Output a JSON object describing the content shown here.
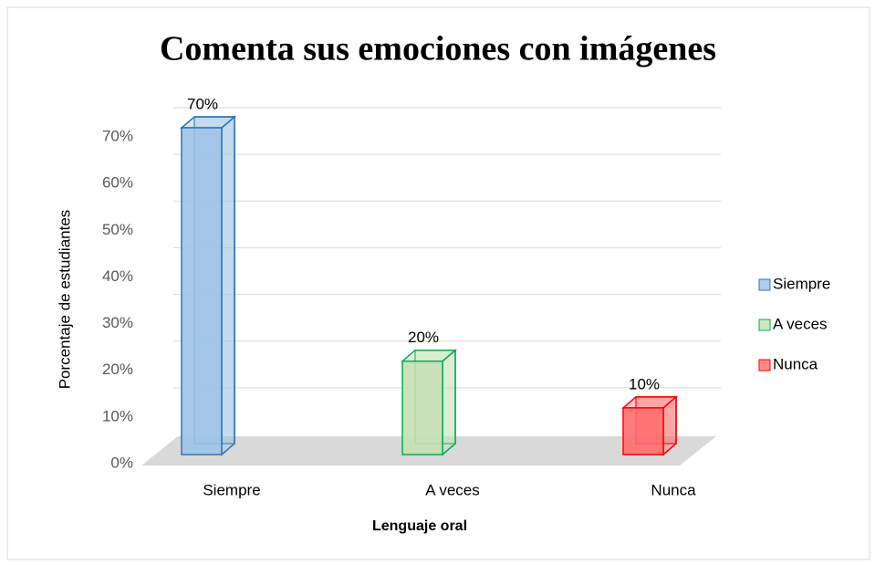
{
  "chart_data": {
    "type": "bar3d",
    "title": "Comenta sus emociones con imágenes",
    "x_label": "Lenguaje oral",
    "y_label": "Porcentaje de estudiantes",
    "categories": [
      "Siempre",
      "A veces",
      "Nunca"
    ],
    "values": [
      70,
      20,
      10
    ],
    "value_labels": [
      "70%",
      "20%",
      "10%"
    ],
    "colors": [
      "#9dc3e6",
      "#c5e0b4",
      "#ff6b6b"
    ],
    "edge_colors": [
      "#2e75b6",
      "#00b050",
      "#ff0000"
    ],
    "ylim": [
      0,
      70
    ],
    "yticks": [
      {
        "value": 0,
        "label": "0%"
      },
      {
        "value": 10,
        "label": "10%"
      },
      {
        "value": 20,
        "label": "20%"
      },
      {
        "value": 30,
        "label": "30%"
      },
      {
        "value": 40,
        "label": "40%"
      },
      {
        "value": 50,
        "label": "50%"
      },
      {
        "value": 60,
        "label": "60%"
      },
      {
        "value": 70,
        "label": "70%"
      }
    ],
    "grid": true,
    "legend": "right"
  }
}
